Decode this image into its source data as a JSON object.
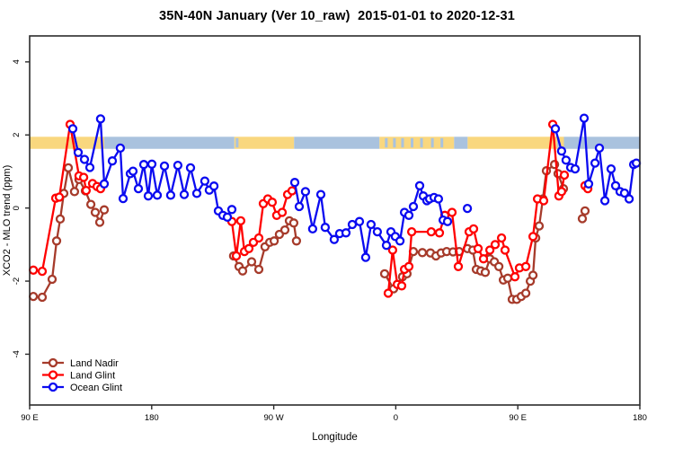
{
  "chart_data": {
    "type": "line",
    "title": "35N-40N January (Ver 10_raw)  2015-01-01 to 2020-12-31",
    "xlabel": "Longitude",
    "ylabel": "XCO2 - MLO trend (ppm)",
    "ylim": [
      -5.39,
      4.71
    ],
    "grid": false,
    "marker": "open-circle",
    "legend_position": "bottom-left",
    "x_axis": {
      "span_deg": 450,
      "note": "x is degrees of longitude eastward from 90E (wraps around globe)",
      "ticks": [
        {
          "deg": 0,
          "label": "90 E"
        },
        {
          "deg": 90,
          "label": "180"
        },
        {
          "deg": 180,
          "label": "90 W"
        },
        {
          "deg": 270,
          "label": "0"
        },
        {
          "deg": 360,
          "label": "90 E"
        },
        {
          "deg": 450,
          "label": "180"
        }
      ]
    },
    "y_axis": {
      "ticks": [
        -4,
        -2,
        0,
        2,
        4
      ]
    },
    "band": {
      "meaning": "land(orange)/ocean(blue) strip along longitude",
      "y_range": [
        1.62,
        1.95
      ],
      "colors": {
        "land": "#F9D77E",
        "ocean": "#A9C2DE"
      },
      "segments": [
        {
          "from": 0,
          "to": 55,
          "type": "land"
        },
        {
          "from": 55,
          "to": 151,
          "type": "ocean"
        },
        {
          "from": 151,
          "to": 195,
          "type": "land"
        },
        {
          "from": 195,
          "to": 258,
          "type": "ocean"
        },
        {
          "from": 258,
          "to": 313,
          "type": "land"
        },
        {
          "from": 313,
          "to": 323,
          "type": "ocean"
        },
        {
          "from": 323,
          "to": 394,
          "type": "land"
        },
        {
          "from": 394,
          "to": 449.8,
          "type": "ocean"
        }
      ],
      "speckles": [
        {
          "from": 34,
          "to": 37,
          "type": "land"
        },
        {
          "from": 41,
          "to": 44,
          "type": "land"
        },
        {
          "from": 152,
          "to": 154,
          "type": "ocean"
        },
        {
          "from": 262,
          "to": 264,
          "type": "ocean"
        },
        {
          "from": 268,
          "to": 270,
          "type": "ocean"
        },
        {
          "from": 274,
          "to": 276,
          "type": "ocean"
        },
        {
          "from": 281,
          "to": 283,
          "type": "ocean"
        },
        {
          "from": 288,
          "to": 290,
          "type": "ocean"
        },
        {
          "from": 296,
          "to": 298,
          "type": "ocean"
        },
        {
          "from": 303,
          "to": 305,
          "type": "ocean"
        },
        {
          "from": 389,
          "to": 391,
          "type": "ocean"
        }
      ]
    },
    "series": [
      {
        "name": "Land Nadir",
        "color": "#A63B2B",
        "runs": [
          [
            [
              2.7,
              -2.42
            ],
            [
              9.3,
              -2.44
            ],
            [
              16.6,
              -1.95
            ],
            [
              19.9,
              -0.9
            ],
            [
              22.5,
              -0.3
            ],
            [
              25.2,
              0.4
            ],
            [
              28.5,
              1.1
            ],
            [
              33.1,
              0.45
            ],
            [
              36.4,
              0.78
            ],
            [
              41.1,
              0.47
            ],
            [
              45.1,
              0.1
            ],
            [
              48.4,
              -0.12
            ],
            [
              51.7,
              -0.39
            ],
            [
              55,
              -0.05
            ]
          ],
          [
            [
              150.4,
              -1.31
            ],
            [
              154.4,
              -1.6
            ],
            [
              157.1,
              -1.72
            ],
            [
              163.7,
              -1.47
            ],
            [
              169,
              -1.68
            ],
            [
              173.6,
              -1.06
            ],
            [
              177,
              -0.94
            ],
            [
              180.3,
              -0.9
            ],
            [
              184.2,
              -0.72
            ],
            [
              188.2,
              -0.6
            ],
            [
              191.5,
              -0.35
            ],
            [
              194.8,
              -0.41
            ],
            [
              196.8,
              -0.9
            ]
          ],
          [
            [
              261.8,
              -1.8
            ],
            [
              268.4,
              -2.21
            ],
            [
              275,
              -1.88
            ],
            [
              278.3,
              -1.8
            ],
            [
              283,
              -1.19
            ],
            [
              289.6,
              -1.22
            ],
            [
              295.6,
              -1.23
            ],
            [
              299.6,
              -1.31
            ],
            [
              303.5,
              -1.23
            ],
            [
              307.5,
              -1.19
            ],
            [
              312.2,
              -1.2
            ],
            [
              316.8,
              -1.19
            ],
            [
              322.8,
              -1.11
            ],
            [
              326.8,
              -1.15
            ],
            [
              329.4,
              -1.68
            ],
            [
              332.7,
              -1.72
            ],
            [
              336,
              -1.76
            ],
            [
              339.4,
              -1.39
            ],
            [
              342.7,
              -1.47
            ],
            [
              346,
              -1.6
            ],
            [
              349.3,
              -1.97
            ],
            [
              352.6,
              -1.92
            ],
            [
              355.9,
              -2.5
            ],
            [
              359.2,
              -2.5
            ],
            [
              362.5,
              -2.42
            ],
            [
              365.9,
              -2.33
            ],
            [
              369.2,
              -2.0
            ],
            [
              371.2,
              -1.84
            ],
            [
              373.2,
              -0.82
            ],
            [
              375.8,
              -0.49
            ],
            [
              378.5,
              0.25
            ],
            [
              381.1,
              1.02
            ],
            [
              387.1,
              1.19
            ],
            [
              389.7,
              0.94
            ],
            [
              393.7,
              0.53
            ]
          ],
          [
            [
              407.6,
              -0.29
            ],
            [
              409.6,
              -0.08
            ]
          ]
        ]
      },
      {
        "name": "Land Glint",
        "color": "#FF0000",
        "runs": [
          [
            [
              2.7,
              -1.7
            ],
            [
              9.3,
              -1.73
            ],
            [
              19.2,
              0.27
            ],
            [
              21.9,
              0.3
            ],
            [
              29.8,
              2.29
            ],
            [
              36.4,
              0.88
            ],
            [
              39.8,
              0.84
            ],
            [
              41.7,
              0.48
            ],
            [
              46.4,
              0.67
            ],
            [
              49.7,
              0.59
            ],
            [
              52.3,
              0.53
            ]
          ],
          [
            [
              149.1,
              -0.37
            ],
            [
              152.4,
              -1.31
            ],
            [
              155.7,
              -0.35
            ],
            [
              158.4,
              -1.19
            ],
            [
              161.7,
              -1.11
            ],
            [
              165,
              -0.94
            ],
            [
              169,
              -0.82
            ],
            [
              172.3,
              0.12
            ],
            [
              175.6,
              0.25
            ],
            [
              178.9,
              0.16
            ],
            [
              182.2,
              -0.2
            ],
            [
              186.2,
              -0.12
            ],
            [
              190.2,
              0.37
            ],
            [
              193.5,
              0.47
            ]
          ],
          [
            [
              264.4,
              -2.33
            ],
            [
              267.7,
              -1.15
            ],
            [
              271.1,
              -2.09
            ],
            [
              274.4,
              -2.13
            ],
            [
              276.4,
              -1.68
            ],
            [
              279.7,
              -1.6
            ],
            [
              281.7,
              -0.65
            ],
            [
              296.2,
              -0.65
            ],
            [
              302.2,
              -0.68
            ],
            [
              306.2,
              -0.2
            ],
            [
              311.5,
              -0.12
            ],
            [
              316.1,
              -1.6
            ],
            [
              324.1,
              -0.65
            ],
            [
              327.4,
              -0.57
            ],
            [
              330.7,
              -1.11
            ],
            [
              334.7,
              -1.39
            ],
            [
              339.4,
              -1.15
            ],
            [
              343.3,
              -1.0
            ],
            [
              348,
              -0.82
            ],
            [
              350.6,
              -1.15
            ],
            [
              357.9,
              -1.88
            ],
            [
              361.2,
              -1.64
            ],
            [
              365.9,
              -1.6
            ],
            [
              371.2,
              -0.78
            ],
            [
              374.5,
              0.25
            ],
            [
              379.1,
              0.2
            ],
            [
              385.8,
              2.29
            ],
            [
              390.3,
              0.33
            ],
            [
              392.3,
              0.45
            ],
            [
              394.3,
              0.9
            ]
          ],
          [
            [
              409.6,
              0.61
            ],
            [
              411.6,
              0.53
            ]
          ]
        ]
      },
      {
        "name": "Ocean Glint",
        "color": "#0A0AF0",
        "runs": [
          [
            [
              31.8,
              2.17
            ],
            [
              35.8,
              1.52
            ],
            [
              40.4,
              1.33
            ],
            [
              44.4,
              1.11
            ],
            [
              52.3,
              2.44
            ],
            [
              55,
              0.66
            ],
            [
              61,
              1.29
            ],
            [
              66.9,
              1.64
            ],
            [
              68.9,
              0.26
            ],
            [
              74.2,
              0.94
            ],
            [
              76.2,
              1.01
            ],
            [
              80.2,
              0.53
            ],
            [
              84.2,
              1.19
            ],
            [
              87.5,
              0.33
            ],
            [
              90.1,
              1.2
            ],
            [
              94.1,
              0.35
            ],
            [
              99.4,
              1.15
            ],
            [
              104,
              0.35
            ],
            [
              109.3,
              1.17
            ],
            [
              114,
              0.37
            ],
            [
              118.6,
              1.1
            ],
            [
              123.3,
              0.4
            ],
            [
              129.2,
              0.74
            ],
            [
              132.5,
              0.49
            ],
            [
              135.9,
              0.6
            ],
            [
              139.2,
              -0.08
            ],
            [
              142.5,
              -0.2
            ],
            [
              145.8,
              -0.25
            ],
            [
              149.1,
              -0.04
            ]
          ],
          [
            [
              195.5,
              0.7
            ],
            [
              198.8,
              0.04
            ],
            [
              203.4,
              0.45
            ],
            [
              208.7,
              -0.57
            ],
            [
              214.7,
              0.37
            ],
            [
              218,
              -0.53
            ],
            [
              224.6,
              -0.86
            ],
            [
              228.6,
              -0.7
            ],
            [
              233.3,
              -0.68
            ],
            [
              237.9,
              -0.45
            ],
            [
              243.2,
              -0.37
            ],
            [
              247.8,
              -1.35
            ],
            [
              251.8,
              -0.45
            ],
            [
              256.4,
              -0.65
            ],
            [
              263.1,
              -1.02
            ],
            [
              266.4,
              -0.65
            ],
            [
              269.7,
              -0.78
            ],
            [
              273.1,
              -0.9
            ],
            [
              276.4,
              -0.12
            ],
            [
              279.7,
              -0.2
            ],
            [
              283,
              0.04
            ],
            [
              287.6,
              0.61
            ],
            [
              290.3,
              0.33
            ],
            [
              292.9,
              0.2
            ],
            [
              294.9,
              0.25
            ],
            [
              298.2,
              0.29
            ],
            [
              301.5,
              0.25
            ],
            [
              304.9,
              -0.33
            ],
            [
              308.2,
              -0.37
            ]
          ],
          [
            [
              322.8,
              -0.01
            ]
          ],
          [
            [
              387.7,
              2.17
            ],
            [
              392.3,
              1.56
            ],
            [
              395.6,
              1.31
            ],
            [
              399,
              1.11
            ],
            [
              402.3,
              1.07
            ],
            [
              408.9,
              2.46
            ],
            [
              412.2,
              0.66
            ],
            [
              416.9,
              1.23
            ],
            [
              420.2,
              1.64
            ],
            [
              424.2,
              0.2
            ],
            [
              428.8,
              1.07
            ],
            [
              432.1,
              0.61
            ],
            [
              435.4,
              0.45
            ],
            [
              438.7,
              0.41
            ],
            [
              442.1,
              0.25
            ],
            [
              445.4,
              1.19
            ],
            [
              447.4,
              1.23
            ]
          ]
        ]
      }
    ]
  }
}
